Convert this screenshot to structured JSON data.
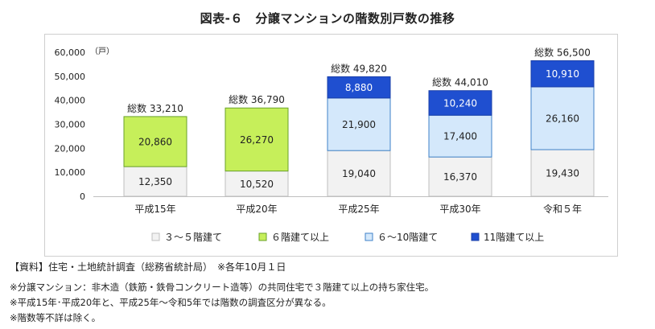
{
  "title": "図表-６　分譲マンションの階数別戸数の推移",
  "source": "【資料】住宅・土地統計調査（総務省統計局）　※各年10月１日",
  "notes": [
    "※分譲マンション：非木造（鉄筋・鉄骨コンクリート造等）の共同住宅で３階建て以上の持ち家住宅。",
    "※平成15年･平成20年と、平成25年～令和5年では階数の調査区分が異なる。",
    "※階数等不詳は除く。"
  ],
  "chart_data": {
    "type": "bar",
    "stacked": true,
    "unit": "（戸）",
    "ylim": [
      0,
      60000
    ],
    "yticks": [
      0,
      10000,
      20000,
      30000,
      40000,
      50000,
      60000
    ],
    "ytick_labels": [
      "0",
      "10,000",
      "20,000",
      "30,000",
      "40,000",
      "50,000",
      "60,000"
    ],
    "grid": false,
    "legend_position": "bottom",
    "categories": [
      "平成15年",
      "平成20年",
      "平成25年",
      "平成30年",
      "令和５年"
    ],
    "totals": [
      33210,
      36790,
      49820,
      44010,
      56500
    ],
    "total_labels": [
      "総数 33,210",
      "総数 36,790",
      "総数 49,820",
      "総数 44,010",
      "総数 56,500"
    ],
    "series": [
      {
        "name": "３～５階建て",
        "color": "#f2f2f2",
        "border": "#bfbfbf",
        "label_color": "#222222",
        "values": [
          12350,
          10520,
          19040,
          16370,
          19430
        ],
        "labels": [
          "12,350",
          "10,520",
          "19,040",
          "16,370",
          "19,430"
        ]
      },
      {
        "name": "６階建て以上",
        "color": "#c6ef5a",
        "border": "#6aa22a",
        "label_color": "#222222",
        "values": [
          20860,
          26270,
          null,
          null,
          null
        ],
        "labels": [
          "20,860",
          "26,270",
          "",
          "",
          ""
        ]
      },
      {
        "name": "６～10階建て",
        "color": "#d4e8fb",
        "border": "#3f82c8",
        "label_color": "#222222",
        "values": [
          null,
          null,
          21900,
          17400,
          26160
        ],
        "labels": [
          "",
          "",
          "21,900",
          "17,400",
          "26,160"
        ]
      },
      {
        "name": "11階建て以上",
        "color": "#1f4fd0",
        "border": "#1a3fa8",
        "label_color": "#ffffff",
        "values": [
          null,
          null,
          8880,
          10240,
          10910
        ],
        "labels": [
          "",
          "",
          "8,880",
          "10,240",
          "10,910"
        ]
      }
    ]
  }
}
